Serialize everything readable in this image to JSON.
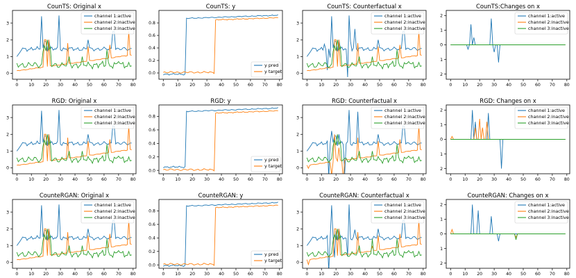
{
  "colors": {
    "blue": "#1f77b4",
    "orange": "#ff7f0e",
    "green": "#2ca02c"
  },
  "chart_data": [
    {
      "type": "line",
      "title": "CounTS: Original x",
      "xlim": [
        -3,
        82
      ],
      "ylim": [
        -0.35,
        3.75
      ],
      "xticks": [
        0,
        10,
        20,
        30,
        40,
        50,
        60,
        70,
        80
      ],
      "yticks": [
        0,
        1,
        2,
        3
      ],
      "legend": {
        "position": "top-right",
        "entries": [
          "channel 1:active",
          "channel 2:inactive",
          "channel 3:inactive"
        ]
      },
      "series": [
        {
          "name": "channel 1:active",
          "color": "blue",
          "profile": "ch1_orig"
        },
        {
          "name": "channel 2:inactive",
          "color": "orange",
          "profile": "ch2_orig"
        },
        {
          "name": "channel 3:inactive",
          "color": "green",
          "profile": "ch3_orig"
        }
      ]
    },
    {
      "type": "line",
      "title": "CounTS: y",
      "xlim": [
        -3,
        82
      ],
      "ylim": [
        -0.1,
        1.0
      ],
      "xticks": [
        0,
        10,
        20,
        30,
        40,
        50,
        60,
        70,
        80
      ],
      "yticks": [
        0.0,
        0.2,
        0.4,
        0.6,
        0.8
      ],
      "legend": {
        "position": "bottom-right",
        "entries": [
          "y pred",
          "y target"
        ]
      },
      "series": [
        {
          "name": "y pred",
          "color": "blue",
          "profile": "ypred_counts"
        },
        {
          "name": "y target",
          "color": "orange",
          "profile": "ytarget"
        }
      ]
    },
    {
      "type": "line",
      "title": "CounTS: Counterfactual x",
      "xlim": [
        -3,
        82
      ],
      "ylim": [
        -0.35,
        3.75
      ],
      "xticks": [
        0,
        10,
        20,
        30,
        40,
        50,
        60,
        70,
        80
      ],
      "yticks": [
        0,
        1,
        2,
        3
      ],
      "legend": {
        "position": "top-right",
        "entries": [
          "channel 1:active",
          "channel 2:inactive",
          "channel 3:inactive"
        ]
      },
      "series": [
        {
          "name": "channel 1:active",
          "color": "blue",
          "profile": "ch1_cf_counts"
        },
        {
          "name": "channel 2:inactive",
          "color": "orange",
          "profile": "ch2_orig"
        },
        {
          "name": "channel 3:inactive",
          "color": "green",
          "profile": "ch3_orig"
        }
      ]
    },
    {
      "type": "line",
      "title": "CounTS:Changes on x",
      "xlim": [
        -3,
        82
      ],
      "ylim": [
        2.35,
        -2.35
      ],
      "xticks": [
        0,
        10,
        20,
        30,
        40,
        50,
        60,
        70,
        80
      ],
      "yticks": [
        2,
        1,
        0,
        1,
        2
      ],
      "legend": {
        "position": "top-right",
        "entries": [
          "channel 1:active",
          "channel 2:inactive",
          "channel 3:inactive"
        ]
      },
      "series": [
        {
          "name": "channel 1:active",
          "color": "blue",
          "profile": "d1_counts"
        },
        {
          "name": "channel 2:inactive",
          "color": "orange",
          "profile": "zero"
        },
        {
          "name": "channel 3:inactive",
          "color": "green",
          "profile": "zero"
        }
      ]
    },
    {
      "type": "line",
      "title": "RGD: Original x",
      "xlim": [
        -3,
        82
      ],
      "ylim": [
        -0.35,
        3.75
      ],
      "xticks": [
        0,
        10,
        20,
        30,
        40,
        50,
        60,
        70,
        80
      ],
      "yticks": [
        0,
        1,
        2,
        3
      ],
      "legend": {
        "position": "top-right",
        "entries": [
          "channel 1:active",
          "channel 2:inactive",
          "channel 3:inactive"
        ]
      },
      "series": [
        {
          "name": "channel 1:active",
          "color": "blue",
          "profile": "ch1_orig"
        },
        {
          "name": "channel 2:inactive",
          "color": "orange",
          "profile": "ch2_orig"
        },
        {
          "name": "channel 3:inactive",
          "color": "green",
          "profile": "ch3_orig"
        }
      ]
    },
    {
      "type": "line",
      "title": "RGD: y",
      "xlim": [
        -3,
        82
      ],
      "ylim": [
        -0.05,
        0.97
      ],
      "xticks": [
        0,
        10,
        20,
        30,
        40,
        50,
        60,
        70,
        80
      ],
      "yticks": [
        0.0,
        0.2,
        0.4,
        0.6,
        0.8
      ],
      "legend": {
        "position": "bottom-right",
        "entries": [
          "y pred",
          "y target"
        ]
      },
      "series": [
        {
          "name": "y pred",
          "color": "blue",
          "profile": "ypred_rgd"
        },
        {
          "name": "y target",
          "color": "orange",
          "profile": "ytarget"
        }
      ]
    },
    {
      "type": "line",
      "title": "RGD: Counterfactual x",
      "xlim": [
        -3,
        82
      ],
      "ylim": [
        -0.35,
        3.75
      ],
      "xticks": [
        0,
        10,
        20,
        30,
        40,
        50,
        60,
        70,
        80
      ],
      "yticks": [
        0,
        1,
        2,
        3
      ],
      "legend": {
        "position": "top-right",
        "entries": [
          "channel 1:active",
          "channel 2:inactive",
          "channel 3:inactive"
        ]
      },
      "series": [
        {
          "name": "channel 1:active",
          "color": "blue",
          "profile": "ch1_cf_rgd"
        },
        {
          "name": "channel 2:inactive",
          "color": "orange",
          "profile": "ch2_cf_rgd"
        },
        {
          "name": "channel 3:inactive",
          "color": "green",
          "profile": "ch3_orig"
        }
      ]
    },
    {
      "type": "line",
      "title": "RGD: Changes on x",
      "xlim": [
        -3,
        82
      ],
      "ylim": [
        2.35,
        -2.35
      ],
      "xticks": [
        0,
        10,
        20,
        30,
        40,
        50,
        60,
        70,
        80
      ],
      "yticks": [
        2,
        1,
        0,
        1,
        2
      ],
      "legend": {
        "position": "top-right",
        "entries": [
          "channel 1:active",
          "channel 2:inactive",
          "channel 3:inactive"
        ]
      },
      "series": [
        {
          "name": "channel 1:active",
          "color": "blue",
          "profile": "d1_rgd"
        },
        {
          "name": "channel 2:inactive",
          "color": "orange",
          "profile": "d2_rgd"
        },
        {
          "name": "channel 3:inactive",
          "color": "green",
          "profile": "zero"
        }
      ]
    },
    {
      "type": "line",
      "title": "CounteRGAN: Original x",
      "xlim": [
        -3,
        82
      ],
      "ylim": [
        -0.35,
        3.75
      ],
      "xticks": [
        0,
        10,
        20,
        30,
        40,
        50,
        60,
        70,
        80
      ],
      "yticks": [
        0,
        1,
        2,
        3
      ],
      "legend": {
        "position": "top-right",
        "entries": [
          "channel 1:active",
          "channel 2:inactive",
          "channel 3:inactive"
        ]
      },
      "series": [
        {
          "name": "channel 1:active",
          "color": "blue",
          "profile": "ch1_orig"
        },
        {
          "name": "channel 2:inactive",
          "color": "orange",
          "profile": "ch2_orig"
        },
        {
          "name": "channel 3:inactive",
          "color": "green",
          "profile": "ch3_orig"
        }
      ]
    },
    {
      "type": "line",
      "title": "CounteRGAN: y",
      "xlim": [
        -3,
        82
      ],
      "ylim": [
        -0.05,
        0.97
      ],
      "xticks": [
        0,
        10,
        20,
        30,
        40,
        50,
        60,
        70,
        80
      ],
      "yticks": [
        0.0,
        0.2,
        0.4,
        0.6,
        0.8
      ],
      "legend": {
        "position": "bottom-right",
        "entries": [
          "y pred",
          "y target"
        ]
      },
      "series": [
        {
          "name": "y pred",
          "color": "blue",
          "profile": "ypred_gan"
        },
        {
          "name": "y target",
          "color": "orange",
          "profile": "ytarget"
        }
      ]
    },
    {
      "type": "line",
      "title": "CounteRGAN: Counterfactual x",
      "xlim": [
        -3,
        82
      ],
      "ylim": [
        -0.35,
        3.75
      ],
      "xticks": [
        0,
        10,
        20,
        30,
        40,
        50,
        60,
        70,
        80
      ],
      "yticks": [
        0,
        1,
        2,
        3
      ],
      "legend": {
        "position": "top-right",
        "entries": [
          "channel 1:active",
          "channel 2:inactive",
          "channel 3:inactive"
        ]
      },
      "series": [
        {
          "name": "channel 1:active",
          "color": "blue",
          "profile": "ch1_cf_gan"
        },
        {
          "name": "channel 2:inactive",
          "color": "orange",
          "profile": "ch2_cf_gan"
        },
        {
          "name": "channel 3:inactive",
          "color": "green",
          "profile": "ch3_cf_gan"
        }
      ]
    },
    {
      "type": "line",
      "title": "CounteRGAN: Changes on x",
      "xlim": [
        -3,
        82
      ],
      "ylim": [
        2.35,
        -2.35
      ],
      "xticks": [
        0,
        10,
        20,
        30,
        40,
        50,
        60,
        70,
        80
      ],
      "yticks": [
        2,
        1,
        0,
        1,
        2
      ],
      "legend": {
        "position": "top-right",
        "entries": [
          "channel 1:active",
          "channel 2:inactive",
          "channel 3:inactive"
        ]
      },
      "series": [
        {
          "name": "channel 1:active",
          "color": "blue",
          "profile": "d1_gan"
        },
        {
          "name": "channel 2:inactive",
          "color": "orange",
          "profile": "d2_gan"
        },
        {
          "name": "channel 3:inactive",
          "color": "green",
          "profile": "d3_gan"
        }
      ]
    }
  ]
}
